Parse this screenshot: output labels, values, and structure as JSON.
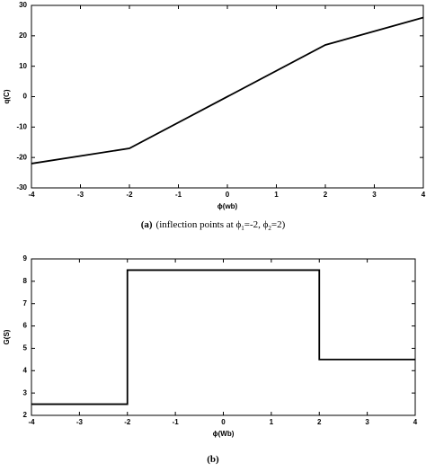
{
  "chart_data": [
    {
      "type": "line",
      "xlabel": "ϕ(wb)",
      "ylabel": "q(C)",
      "x": [
        -4,
        -2,
        2,
        4
      ],
      "series": [
        {
          "color": "#000000",
          "values": [
            -22,
            -17,
            17,
            26
          ]
        }
      ],
      "xlim": [
        -4,
        4
      ],
      "xticks": [
        -4,
        -3,
        -2,
        -1,
        0,
        1,
        2,
        3,
        4
      ],
      "ylim": [
        -30,
        30
      ],
      "yticks": [
        -30,
        -20,
        -10,
        0,
        10,
        20,
        30
      ],
      "caption": {
        "label": "(a)",
        "parts": [
          "(inflection points at ϕ",
          "1",
          "=-2, ϕ",
          "2",
          "=2)"
        ]
      }
    },
    {
      "type": "line",
      "xlabel": "ϕ(Wb)",
      "ylabel": "G(S)",
      "x": [
        -4,
        -2,
        -2,
        2,
        2,
        4
      ],
      "series": [
        {
          "color": "#000000",
          "values": [
            2.5,
            2.5,
            8.5,
            8.5,
            4.5,
            4.5
          ]
        }
      ],
      "xlim": [
        -4,
        4
      ],
      "xticks": [
        -4,
        -3,
        -2,
        -1,
        0,
        1,
        2,
        3,
        4
      ],
      "ylim": [
        2,
        9
      ],
      "yticks": [
        2,
        3,
        4,
        5,
        6,
        7,
        8,
        9
      ],
      "caption": {
        "label": "(b)"
      }
    }
  ]
}
